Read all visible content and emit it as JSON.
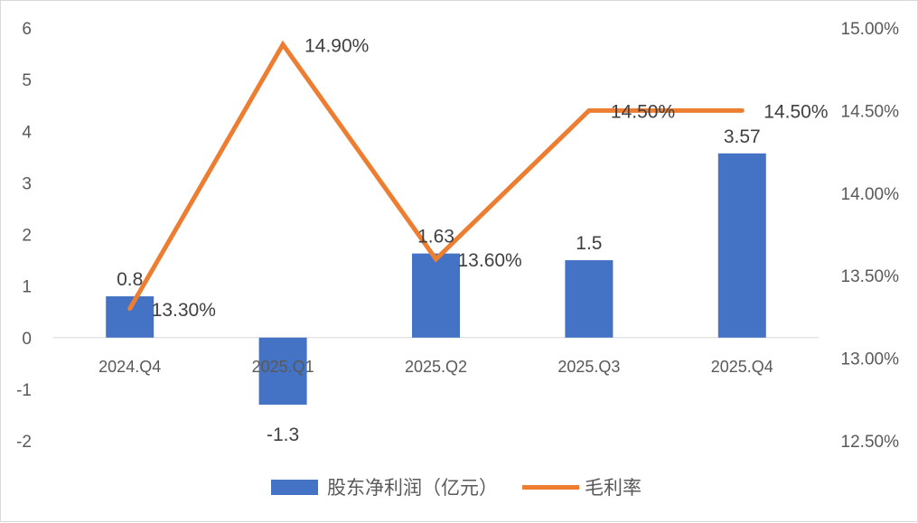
{
  "chart_data": {
    "type": "bar+line",
    "categories": [
      "2024.Q4",
      "2025.Q1",
      "2025.Q2",
      "2025.Q3",
      "2025.Q4"
    ],
    "series": [
      {
        "name": "股东净利润（亿元）",
        "type": "bar",
        "axis": "left",
        "values": [
          0.8,
          -1.3,
          1.63,
          1.5,
          3.57
        ],
        "labels": [
          "0.8",
          "-1.3",
          "1.63",
          "1.5",
          "3.57"
        ],
        "color": "#4472C4"
      },
      {
        "name": "毛利率",
        "type": "line",
        "axis": "right",
        "values": [
          13.3,
          14.9,
          13.6,
          14.5,
          14.5
        ],
        "labels": [
          "13.30%",
          "14.90%",
          "13.60%",
          "14.50%",
          "14.50%"
        ],
        "color": "#ED7D31"
      }
    ],
    "y_left": {
      "ticks": [
        "6",
        "5",
        "4",
        "3",
        "2",
        "1",
        "0",
        "-1",
        "-2"
      ],
      "ylim": [
        -2,
        6
      ]
    },
    "y_right": {
      "ticks": [
        "15.00%",
        "14.50%",
        "14.00%",
        "13.50%",
        "13.00%",
        "12.50%"
      ],
      "ylim": [
        12.5,
        15.0
      ]
    },
    "legend_position": "bottom",
    "grid": false,
    "title": ""
  }
}
